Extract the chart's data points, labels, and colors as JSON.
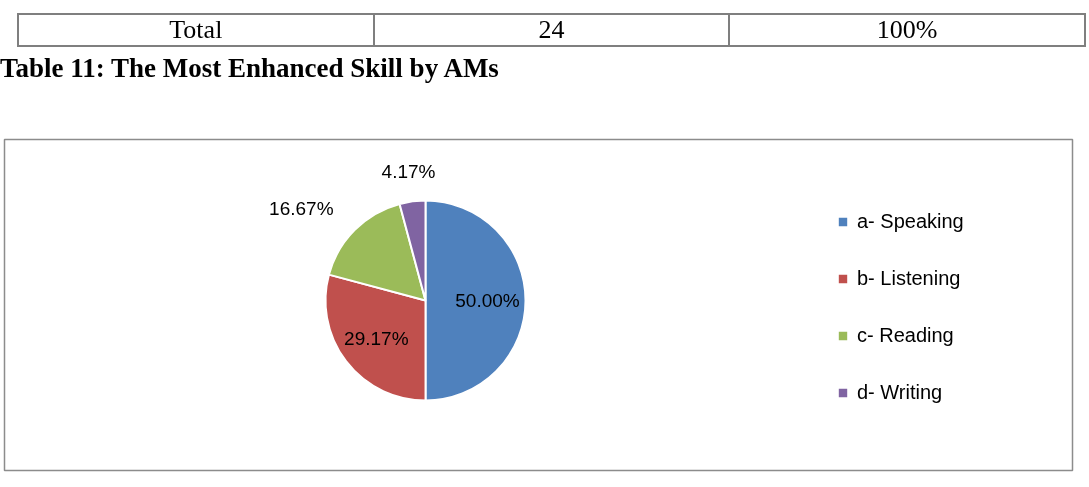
{
  "chart_data": {
    "type": "pie",
    "title": "Table 11: The Most Enhanced Skill by AMs",
    "categories": [
      "a- Speaking",
      "b- Listening",
      "c- Reading",
      "d- Writing"
    ],
    "values": [
      50,
      29.17,
      16.67,
      4.17
    ],
    "colors": [
      "#4f81bd",
      "#c0504d",
      "#9bbb59",
      "#8064a2"
    ],
    "value_labels": [
      "50.00%",
      "29.17%",
      "16.67%",
      "4.17%"
    ],
    "legend": "right",
    "annotations": [
      "Total",
      "24",
      "100%"
    ]
  }
}
